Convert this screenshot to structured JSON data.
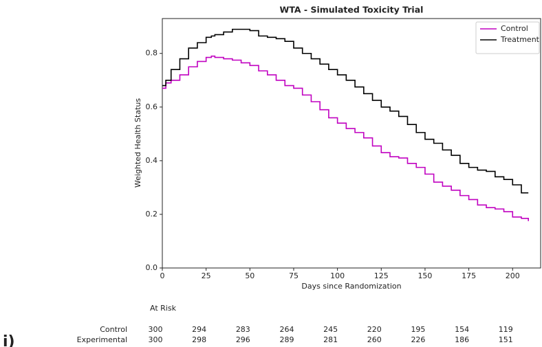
{
  "chart_data": {
    "type": "line",
    "drawstyle": "steps-post",
    "title": "WTA - Simulated Toxicity Trial",
    "xlabel": "Days since Randomization",
    "ylabel": "Weighted Health Status",
    "x": [
      0,
      2,
      5,
      10,
      15,
      20,
      25,
      28,
      30,
      35,
      40,
      45,
      50,
      55,
      60,
      65,
      70,
      75,
      80,
      85,
      90,
      95,
      100,
      105,
      110,
      115,
      120,
      125,
      130,
      135,
      140,
      145,
      150,
      155,
      160,
      165,
      170,
      175,
      180,
      185,
      190,
      195,
      200,
      205,
      209
    ],
    "series": [
      {
        "name": "Control",
        "color": "#c000c0",
        "values": [
          0.67,
          0.69,
          0.7,
          0.72,
          0.75,
          0.77,
          0.785,
          0.79,
          0.785,
          0.78,
          0.775,
          0.765,
          0.755,
          0.735,
          0.72,
          0.7,
          0.68,
          0.67,
          0.645,
          0.62,
          0.59,
          0.56,
          0.54,
          0.52,
          0.505,
          0.485,
          0.455,
          0.43,
          0.415,
          0.41,
          0.39,
          0.375,
          0.35,
          0.32,
          0.305,
          0.29,
          0.27,
          0.255,
          0.235,
          0.225,
          0.22,
          0.21,
          0.19,
          0.185,
          0.175
        ]
      },
      {
        "name": "Treatment",
        "color": "#000000",
        "values": [
          0.68,
          0.7,
          0.74,
          0.78,
          0.82,
          0.84,
          0.86,
          0.865,
          0.87,
          0.88,
          0.89,
          0.89,
          0.885,
          0.865,
          0.86,
          0.855,
          0.845,
          0.82,
          0.8,
          0.78,
          0.76,
          0.74,
          0.72,
          0.7,
          0.675,
          0.65,
          0.625,
          0.6,
          0.585,
          0.565,
          0.535,
          0.505,
          0.48,
          0.465,
          0.44,
          0.42,
          0.39,
          0.375,
          0.365,
          0.36,
          0.34,
          0.33,
          0.31,
          0.28,
          0.28
        ]
      }
    ],
    "xlim": [
      0,
      216
    ],
    "xticks": [
      0,
      25,
      50,
      75,
      100,
      125,
      150,
      175,
      200
    ],
    "ylim": [
      0,
      0.93
    ],
    "yticks": [
      {
        "value": 0,
        "label": "0.0"
      },
      0.2,
      0.4,
      0.6,
      0.8
    ],
    "legend": "upper right",
    "at_risk": {
      "title": "At Risk",
      "days": [
        0,
        25,
        50,
        75,
        100,
        125,
        150,
        175,
        200
      ],
      "rows": [
        {
          "name": "Control",
          "values": [
            300,
            294,
            283,
            264,
            245,
            220,
            195,
            154,
            119
          ]
        },
        {
          "name": "Experimental",
          "values": [
            300,
            298,
            296,
            289,
            281,
            260,
            226,
            186,
            151
          ]
        }
      ]
    },
    "panel_label": "i)"
  }
}
